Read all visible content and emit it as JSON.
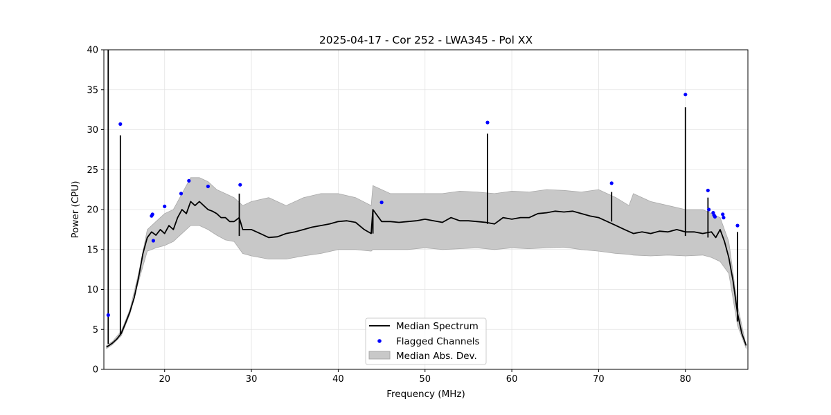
{
  "chart_data": {
    "type": "line",
    "title": "2025-04-17 - Cor 252 - LWA345 - Pol XX",
    "xlabel": "Frequency (MHz)",
    "ylabel": "Power (CPU)",
    "xlim": [
      13.0,
      87.2
    ],
    "ylim": [
      0,
      40
    ],
    "xticks": [
      20,
      30,
      40,
      50,
      60,
      70,
      80
    ],
    "yticks": [
      0,
      5,
      10,
      15,
      20,
      25,
      30,
      35,
      40
    ],
    "grid": true,
    "legend_position": "lower-center",
    "colors": {
      "median": "#000000",
      "flagged": "#0000ff",
      "mad_fill": "#c8c8c8",
      "mad_edge": "#a9a9a9"
    },
    "series": [
      {
        "name": "Median Spectrum",
        "kind": "line",
        "x": [
          13.3,
          13.6,
          14.0,
          14.5,
          15.0,
          15.5,
          16.0,
          16.5,
          17.0,
          17.5,
          18.0,
          18.5,
          19.0,
          19.5,
          20.0,
          20.5,
          21.0,
          21.5,
          22.0,
          22.5,
          23.0,
          23.5,
          24.0,
          24.5,
          25.0,
          25.5,
          26.0,
          26.5,
          27.0,
          27.5,
          28.0,
          28.6,
          29.0,
          30.0,
          31.0,
          32.0,
          33.0,
          34.0,
          35.0,
          36.0,
          37.0,
          38.0,
          39.0,
          40.0,
          41.0,
          42.0,
          43.0,
          43.8,
          44.0,
          45.0,
          46.0,
          47.0,
          48.0,
          49.0,
          50.0,
          51.0,
          52.0,
          53.0,
          54.0,
          55.0,
          56.0,
          57.0,
          58.0,
          59.0,
          60.0,
          61.0,
          62.0,
          63.0,
          64.0,
          65.0,
          66.0,
          67.0,
          68.0,
          69.0,
          70.0,
          71.0,
          72.0,
          73.0,
          74.0,
          75.0,
          76.0,
          77.0,
          78.0,
          79.0,
          80.0,
          81.0,
          82.0,
          83.0,
          83.5,
          84.0,
          84.5,
          85.0,
          85.5,
          86.0,
          86.5,
          87.0
        ],
        "y": [
          2.8,
          3.0,
          3.3,
          3.8,
          4.5,
          5.8,
          7.2,
          9.0,
          11.5,
          14.5,
          16.5,
          17.2,
          16.8,
          17.5,
          17.0,
          18.0,
          17.5,
          19.0,
          20.0,
          19.5,
          21.0,
          20.5,
          21.0,
          20.5,
          20.0,
          19.8,
          19.5,
          19.0,
          19.0,
          18.5,
          18.5,
          19.0,
          17.5,
          17.5,
          17.0,
          16.5,
          16.6,
          17.0,
          17.2,
          17.5,
          17.8,
          18.0,
          18.2,
          18.5,
          18.6,
          18.4,
          17.5,
          17.0,
          20.0,
          18.5,
          18.5,
          18.4,
          18.5,
          18.6,
          18.8,
          18.6,
          18.4,
          19.0,
          18.6,
          18.6,
          18.5,
          18.4,
          18.2,
          19.0,
          18.8,
          19.0,
          19.0,
          19.5,
          19.6,
          19.8,
          19.7,
          19.8,
          19.5,
          19.2,
          19.0,
          18.5,
          18.0,
          17.5,
          17.0,
          17.2,
          17.0,
          17.3,
          17.2,
          17.5,
          17.2,
          17.2,
          17.0,
          17.2,
          16.5,
          17.5,
          16.0,
          14.0,
          11.0,
          7.0,
          4.5,
          3.0
        ]
      },
      {
        "name": "Median Abs. Dev.",
        "kind": "band",
        "x": [
          13.3,
          14.0,
          15.0,
          16.0,
          17.0,
          18.0,
          19.0,
          20.0,
          21.0,
          22.0,
          23.0,
          24.0,
          25.0,
          26.0,
          27.0,
          28.0,
          29.0,
          30.0,
          32.0,
          34.0,
          36.0,
          38.0,
          40.0,
          42.0,
          43.8,
          44.0,
          46.0,
          48.0,
          50.0,
          52.0,
          54.0,
          56.0,
          58.0,
          60.0,
          62.0,
          64.0,
          66.0,
          68.0,
          70.0,
          72.0,
          73.5,
          74.0,
          76.0,
          78.0,
          80.0,
          82.0,
          83.0,
          84.0,
          85.0,
          86.0,
          87.0
        ],
        "lower": [
          2.6,
          3.1,
          4.2,
          6.9,
          11.0,
          14.8,
          15.2,
          15.5,
          16.0,
          17.0,
          18.0,
          18.0,
          17.5,
          16.8,
          16.2,
          16.0,
          14.5,
          14.2,
          13.8,
          13.8,
          14.2,
          14.5,
          15.0,
          15.0,
          14.8,
          15.0,
          15.0,
          15.0,
          15.2,
          15.0,
          15.1,
          15.2,
          15.0,
          15.2,
          15.1,
          15.2,
          15.3,
          15.0,
          14.8,
          14.5,
          14.4,
          14.3,
          14.2,
          14.3,
          14.2,
          14.3,
          14.0,
          13.5,
          12.0,
          5.5,
          2.6
        ],
        "upper": [
          3.0,
          3.5,
          4.8,
          7.5,
          12.0,
          17.5,
          18.5,
          19.5,
          20.0,
          22.0,
          24.0,
          24.0,
          23.5,
          22.5,
          22.0,
          21.5,
          20.5,
          21.0,
          21.5,
          20.5,
          21.5,
          22.0,
          22.0,
          21.5,
          20.5,
          23.0,
          22.0,
          22.0,
          22.0,
          22.0,
          22.3,
          22.2,
          22.0,
          22.3,
          22.2,
          22.5,
          22.4,
          22.2,
          22.5,
          21.5,
          20.5,
          22.0,
          21.0,
          20.5,
          20.0,
          20.0,
          19.5,
          19.0,
          16.0,
          8.0,
          3.0
        ]
      },
      {
        "name": "Flagged Channels",
        "kind": "scatter",
        "x": [
          13.5,
          14.9,
          18.5,
          18.6,
          18.7,
          20.0,
          21.9,
          22.8,
          25.0,
          28.7,
          45.0,
          57.2,
          71.5,
          80.0,
          82.6,
          82.7,
          83.2,
          83.3,
          83.4,
          84.3,
          84.4,
          86.0
        ],
        "y": [
          6.8,
          30.7,
          19.2,
          19.4,
          16.1,
          20.4,
          22.0,
          23.6,
          22.9,
          23.1,
          20.9,
          30.9,
          23.3,
          34.4,
          22.4,
          20.0,
          19.6,
          19.3,
          19.1,
          19.4,
          19.0,
          18.0
        ]
      },
      {
        "name": "spikes",
        "kind": "spikes",
        "x": [
          13.5,
          14.9,
          28.6,
          44.0,
          57.2,
          71.5,
          80.0,
          82.6,
          86.0
        ],
        "top": [
          40,
          29.3,
          22.0,
          20.0,
          29.5,
          22.2,
          32.8,
          21.5,
          17.2
        ],
        "base": [
          3.2,
          4.3,
          16.7,
          17.0,
          18.2,
          18.5,
          16.7,
          16.5,
          6.0
        ]
      }
    ],
    "legend": [
      "Median Spectrum",
      "Flagged Channels",
      "Median Abs. Dev."
    ]
  }
}
